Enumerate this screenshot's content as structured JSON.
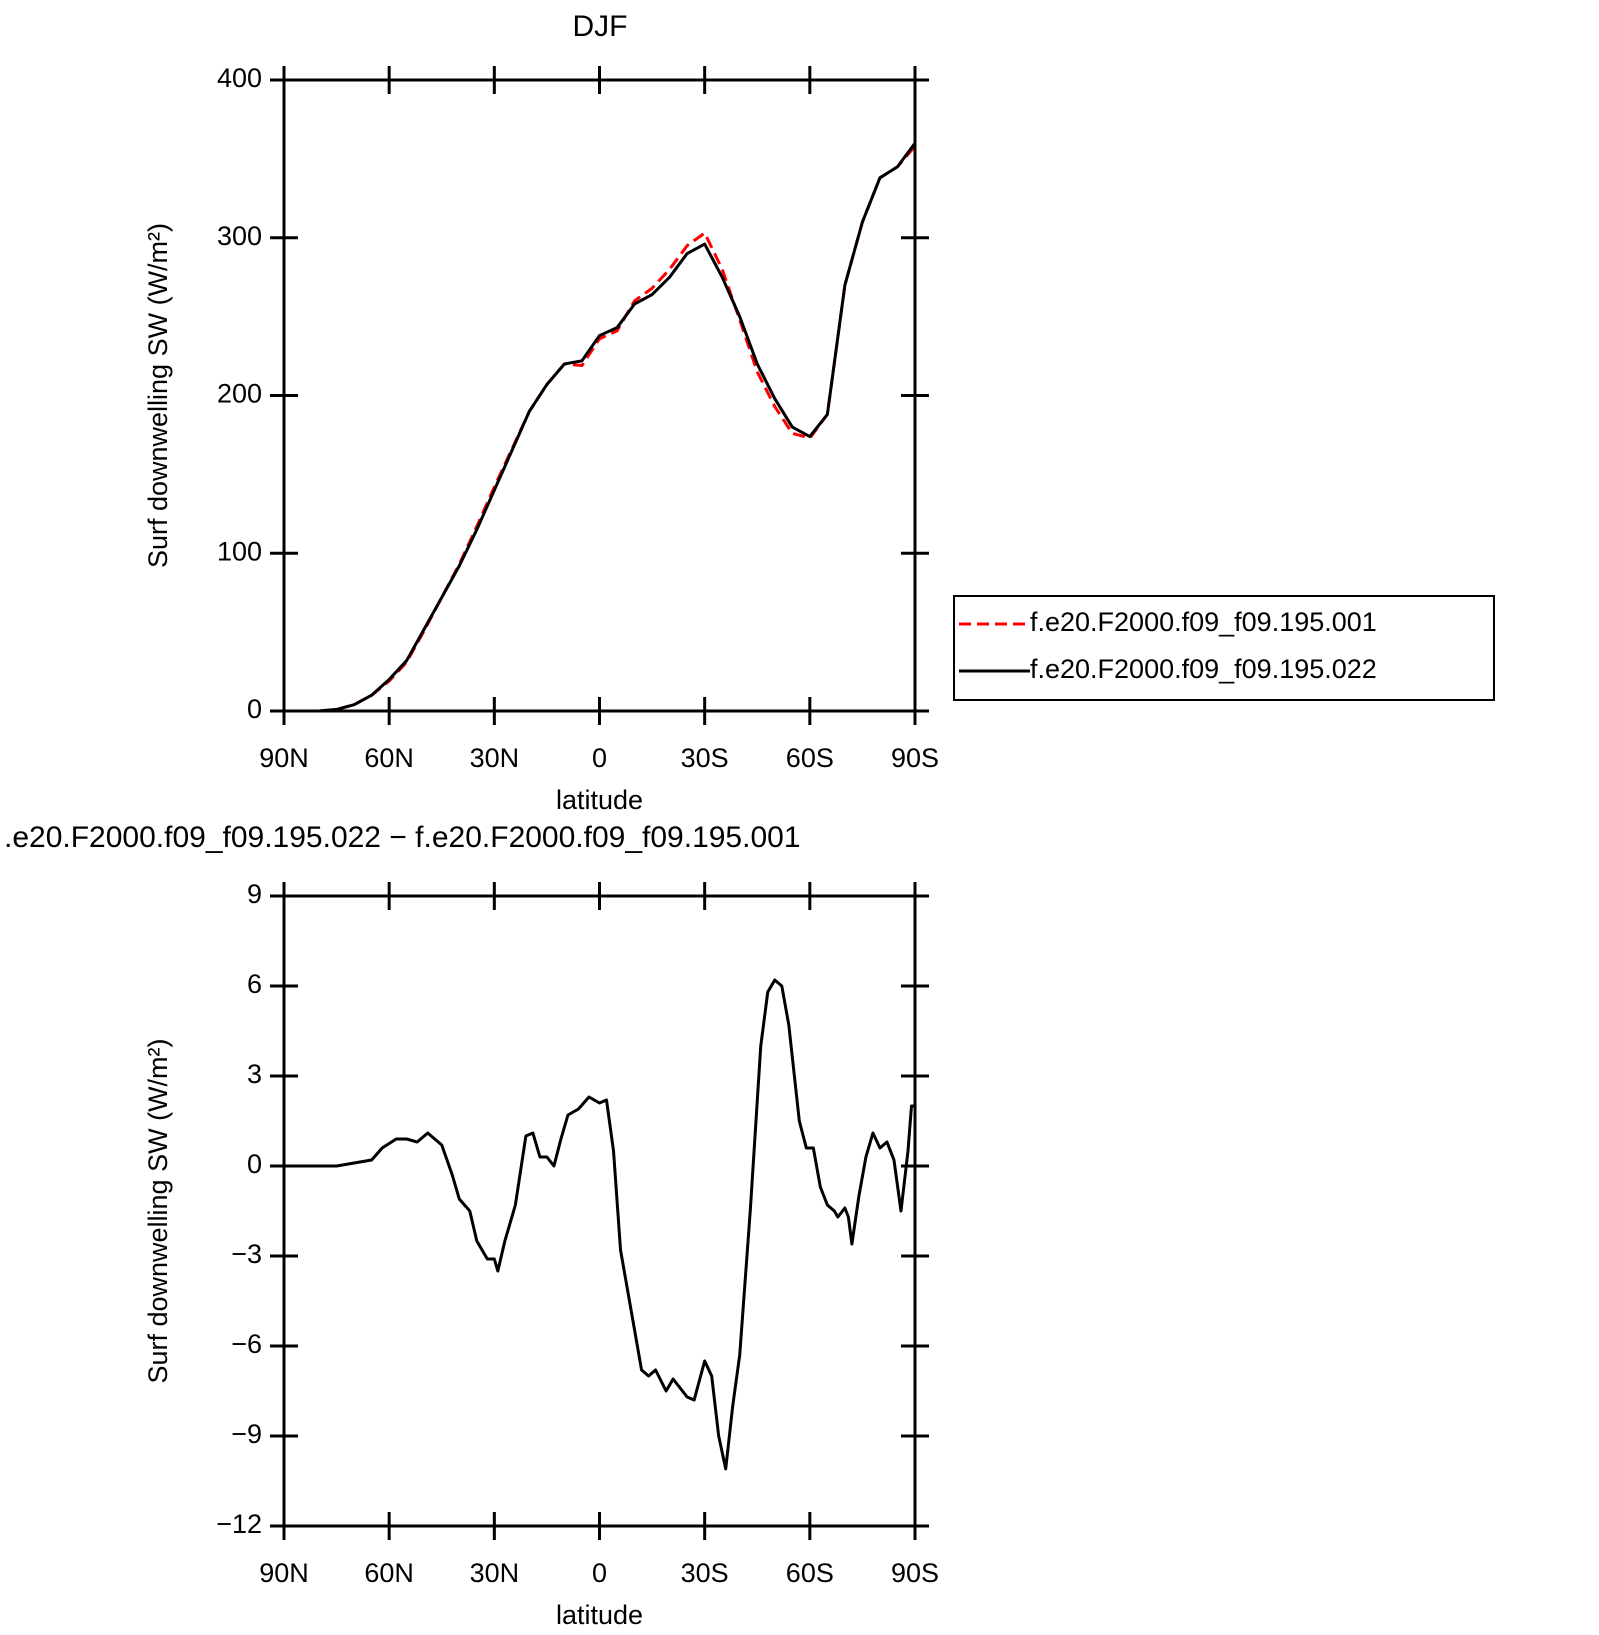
{
  "chart_data": [
    {
      "type": "line",
      "title": "DJF",
      "xlabel": "latitude",
      "ylabel": "Surf downwelling SW (W/m²)",
      "x": [
        90,
        85,
        80,
        75,
        70,
        65,
        60,
        55,
        50,
        45,
        40,
        35,
        30,
        25,
        20,
        15,
        10,
        5,
        0,
        -5,
        -10,
        -15,
        -20,
        -25,
        -30,
        -35,
        -40,
        -45,
        -50,
        -55,
        -60,
        -65,
        -70,
        -75,
        -80,
        -85,
        -90
      ],
      "series": [
        {
          "name": "f.e20.F2000.f09_f09.195.001",
          "color": "#ff0000",
          "dash": true,
          "values": [
            0,
            0,
            0,
            1,
            4,
            10,
            19,
            31,
            51,
            72,
            93,
            117,
            142,
            166,
            190,
            207,
            220,
            219,
            236,
            241,
            260,
            268,
            280,
            295,
            303,
            280,
            248,
            215,
            193,
            176,
            173,
            188,
            270,
            310,
            338,
            345,
            358
          ]
        },
        {
          "name": "f.e20.F2000.f09_f09.195.022",
          "color": "#000000",
          "dash": false,
          "values": [
            0,
            0,
            0,
            1,
            4,
            10,
            20,
            32,
            52,
            72,
            92,
            115,
            140,
            165,
            190,
            207,
            220,
            222,
            238,
            243,
            258,
            264,
            275,
            290,
            296,
            275,
            250,
            220,
            198,
            180,
            174,
            188,
            270,
            310,
            338,
            345,
            360
          ]
        }
      ],
      "xlim": [
        90,
        -90
      ],
      "xticks": [
        {
          "value": 90,
          "label": "90N"
        },
        {
          "value": 60,
          "label": "60N"
        },
        {
          "value": 30,
          "label": "30N"
        },
        0,
        {
          "value": -30,
          "label": "30S"
        },
        {
          "value": -60,
          "label": "60S"
        },
        {
          "value": -90,
          "label": "90S"
        }
      ],
      "ylim": [
        0,
        400
      ],
      "yticks": [
        0,
        100,
        200,
        300,
        400
      ],
      "legend": "outside-right"
    },
    {
      "type": "line",
      "title": ".e20.F2000.f09_f09.195.022 − f.e20.F2000.f09_f09.195.001",
      "xlabel": "latitude",
      "ylabel": "Surf downwelling SW (W/m²)",
      "x": [
        90,
        75,
        70,
        65,
        62,
        58,
        55,
        52,
        49,
        45,
        42,
        40,
        37,
        35,
        32,
        30,
        29,
        27,
        24,
        21,
        19,
        17,
        15,
        13,
        11,
        9,
        6,
        3,
        0,
        -2,
        -4,
        -6,
        -9,
        -12,
        -14,
        -16,
        -19,
        -21,
        -25,
        -27,
        -30,
        -32,
        -34,
        -36,
        -38,
        -40,
        -43,
        -46,
        -48,
        -50,
        -52,
        -54,
        -57,
        -59,
        -61,
        -63,
        -65,
        -67,
        -68,
        -70,
        -71,
        -72,
        -74,
        -76,
        -78,
        -80,
        -82,
        -84,
        -86,
        -88,
        -89,
        -90
      ],
      "series": [
        {
          "color": "#000000",
          "dash": false,
          "values": [
            0,
            0,
            0.1,
            0.2,
            0.6,
            0.9,
            0.9,
            0.8,
            1.1,
            0.7,
            -0.3,
            -1.1,
            -1.5,
            -2.5,
            -3.1,
            -3.1,
            -3.5,
            -2.5,
            -1.3,
            1.0,
            1.1,
            0.3,
            0.3,
            0,
            0.9,
            1.7,
            1.9,
            2.3,
            2.1,
            2.2,
            0.5,
            -2.8,
            -4.8,
            -6.8,
            -7.0,
            -6.8,
            -7.5,
            -7.1,
            -7.7,
            -7.8,
            -6.5,
            -7.0,
            -9.0,
            -10.1,
            -8.0,
            -6.3,
            -1.5,
            4.0,
            5.8,
            6.2,
            6.0,
            4.7,
            1.5,
            0.6,
            0.6,
            -0.7,
            -1.3,
            -1.5,
            -1.7,
            -1.4,
            -1.7,
            -2.6,
            -1.0,
            0.3,
            1.1,
            0.6,
            0.8,
            0.2,
            -1.5,
            0.5,
            2.0,
            2.0
          ]
        }
      ],
      "xlim": [
        90,
        -90
      ],
      "xticks": [
        {
          "value": 90,
          "label": "90N"
        },
        {
          "value": 60,
          "label": "60N"
        },
        {
          "value": 30,
          "label": "30N"
        },
        0,
        {
          "value": -30,
          "label": "30S"
        },
        {
          "value": -60,
          "label": "60S"
        },
        {
          "value": -90,
          "label": "90S"
        }
      ],
      "ylim": [
        -12,
        9
      ],
      "yticks": [
        {
          "value": -12,
          "label": "−12"
        },
        {
          "value": -9,
          "label": "−9"
        },
        {
          "value": -6,
          "label": "−6"
        },
        {
          "value": -3,
          "label": "−3"
        },
        0,
        3,
        6,
        9
      ]
    }
  ]
}
